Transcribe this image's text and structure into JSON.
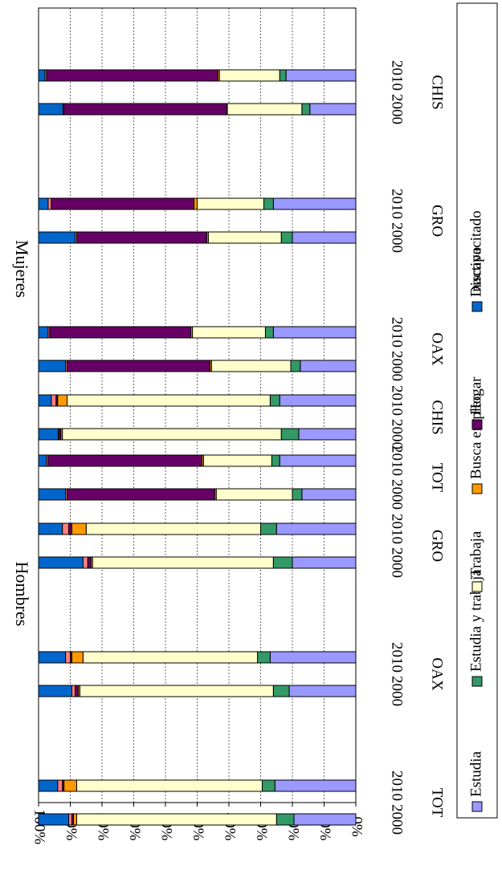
{
  "chart_data": {
    "type": "bar",
    "orientation": "stacked-100-horizontal",
    "value_axis_ticks": [
      "0%",
      "10%",
      "20%",
      "30%",
      "40%",
      "50%",
      "60%",
      "70%",
      "80%",
      "90%",
      "100%"
    ],
    "ylim": [
      0,
      100
    ],
    "grid": true,
    "legend_position": "right",
    "groups": [
      {
        "label": "Hombres",
        "states": [
          {
            "label": "CHIS",
            "bars": [
              {
                "year": "2000",
                "values": [
                  18.0,
                  5.5,
                  69.0,
                  0.5,
                  0.5,
                  0.3,
                  6.2
                ]
              },
              {
                "year": "2010",
                "values": [
                  24.0,
                  3.0,
                  64.0,
                  3.0,
                  0.5,
                  1.5,
                  4.0
                ]
              }
            ]
          },
          {
            "label": "GRO",
            "bars": [
              {
                "year": "2000",
                "values": [
                  20.0,
                  6.0,
                  57.0,
                  0.5,
                  1.0,
                  1.5,
                  14.0
                ]
              },
              {
                "year": "2010",
                "values": [
                  25.0,
                  5.0,
                  55.0,
                  4.5,
                  1.0,
                  2.0,
                  7.5
                ]
              }
            ]
          },
          {
            "label": "OAX",
            "bars": [
              {
                "year": "2000",
                "values": [
                  21.0,
                  5.0,
                  61.0,
                  0.5,
                  1.0,
                  1.0,
                  10.5
                ]
              },
              {
                "year": "2010",
                "values": [
                  27.0,
                  4.0,
                  55.0,
                  3.5,
                  0.5,
                  1.5,
                  8.5
                ]
              }
            ]
          },
          {
            "label": "TOT",
            "bars": [
              {
                "year": "2000",
                "values": [
                  19.5,
                  5.5,
                  63.0,
                  1.0,
                  0.5,
                  1.0,
                  9.5
                ]
              },
              {
                "year": "2010",
                "values": [
                  25.5,
                  4.0,
                  58.5,
                  4.0,
                  0.5,
                  1.5,
                  6.0
                ]
              }
            ]
          }
        ]
      },
      {
        "label": "Mujeres",
        "states": [
          {
            "label": "CHIS",
            "bars": [
              {
                "year": "2000",
                "values": [
                  14.5,
                  2.5,
                  23.5,
                  0.2,
                  51.3,
                  0.3,
                  7.7
                ]
              },
              {
                "year": "2010",
                "values": [
                  22.0,
                  2.0,
                  19.0,
                  0.5,
                  54.0,
                  0.5,
                  2.0
                ]
              }
            ]
          },
          {
            "label": "GRO",
            "bars": [
              {
                "year": "2000",
                "values": [
                  20.0,
                  3.5,
                  23.0,
                  0.5,
                  41.0,
                  0.5,
                  11.5
                ]
              },
              {
                "year": "2010",
                "values": [
                  26.0,
                  3.0,
                  21.0,
                  1.0,
                  45.0,
                  1.0,
                  3.0
                ]
              }
            ]
          },
          {
            "label": "OAX",
            "bars": [
              {
                "year": "2000",
                "values": [
                  17.5,
                  3.0,
                  25.0,
                  0.5,
                  45.0,
                  0.5,
                  8.5
                ]
              },
              {
                "year": "2010",
                "values": [
                  26.0,
                  2.5,
                  23.0,
                  0.5,
                  44.5,
                  0.5,
                  3.0
                ]
              }
            ]
          },
          {
            "label": "TOT",
            "bars": [
              {
                "year": "2000",
                "values": [
                  17.0,
                  3.0,
                  24.0,
                  0.5,
                  46.5,
                  0.5,
                  8.5
                ]
              },
              {
                "year": "2010",
                "values": [
                  24.0,
                  2.5,
                  21.5,
                  0.5,
                  48.5,
                  0.5,
                  2.5
                ]
              }
            ]
          }
        ]
      }
    ],
    "series": [
      {
        "name": "Estudia",
        "color": "#9999ff"
      },
      {
        "name": "Estudia y trabaja",
        "color": "#339966"
      },
      {
        "name": "Trabaja",
        "color": "#ffffcc"
      },
      {
        "name": "Busca empleo",
        "color": "#ff9900"
      },
      {
        "name": "Hogar",
        "color": "#660066"
      },
      {
        "name": "Discapacitado",
        "color": "#ff8080"
      },
      {
        "name": "Inactivo",
        "color": "#0066cc"
      }
    ]
  }
}
